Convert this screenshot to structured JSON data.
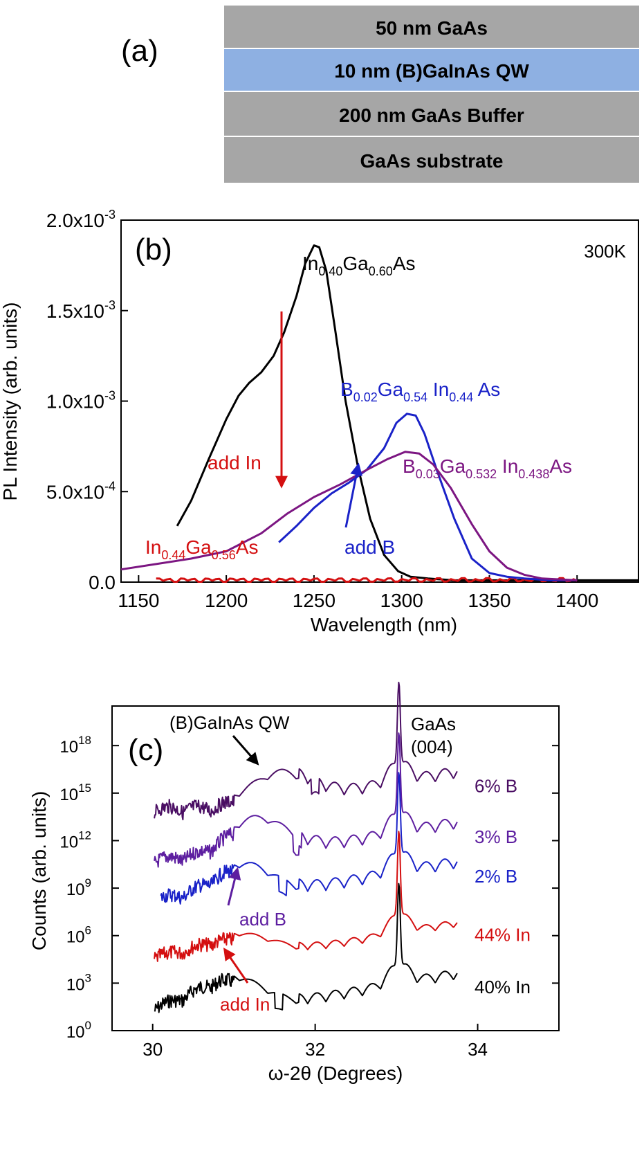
{
  "colors": {
    "gray_layer": "#a6a6a6",
    "blue_layer": "#8eb0e2",
    "black": "#000000",
    "red": "#d40f10",
    "blue": "#1a22c8",
    "purple": "#7c1682",
    "violet": "#5d1ea0",
    "dark_purple": "#4a0e63"
  },
  "panel_a": {
    "label": "(a)",
    "layers": [
      "50 nm GaAs",
      "10 nm (B)GaInAs QW",
      "200 nm GaAs Buffer",
      "GaAs substrate"
    ]
  },
  "chart_data": [
    {
      "type": "line",
      "panel_label": "(b)",
      "temperature_label": "300K",
      "xlabel": "Wavelength (nm)",
      "ylabel": "PL Intensity (arb. units)",
      "xlim": [
        1140,
        1435
      ],
      "ylim": [
        0,
        0.002
      ],
      "xticks": [
        1150,
        1200,
        1250,
        1300,
        1350,
        1400
      ],
      "yticks": [
        0.0,
        0.0005,
        0.001,
        0.0015,
        0.002
      ],
      "ytick_labels": [
        "0.0",
        "5.0x10",
        "1.0x10",
        "1.5x10",
        "2.0x10"
      ],
      "ytick_exponents": [
        "",
        "-4",
        "-3",
        "-3",
        "-3"
      ],
      "series": [
        {
          "name": "In0.40Ga0.60As",
          "color": "#000000",
          "x": [
            1172,
            1180,
            1190,
            1200,
            1207,
            1213,
            1220,
            1227,
            1233,
            1240,
            1245,
            1250,
            1253,
            1257,
            1262,
            1268,
            1275,
            1282,
            1290,
            1298,
            1305,
            1315,
            1330,
            1350,
            1380,
            1410,
            1435
          ],
          "y": [
            0.00031,
            0.00045,
            0.00068,
            0.0009,
            0.00103,
            0.0011,
            0.00116,
            0.00125,
            0.00138,
            0.00158,
            0.00176,
            0.00186,
            0.00185,
            0.00172,
            0.0014,
            0.001,
            0.00064,
            0.00035,
            0.00015,
            6e-05,
            3e-05,
            2e-05,
            1e-05,
            1e-05,
            1e-05,
            1e-05,
            1e-05
          ]
        },
        {
          "name": "In0.44Ga0.56As",
          "color": "#d40f10",
          "x": [
            1160,
            1180,
            1200,
            1220,
            1240,
            1260,
            1280,
            1300,
            1320,
            1340,
            1360,
            1380,
            1400
          ],
          "y": [
            2e-05,
            1e-05,
            1.5e-05,
            1e-05,
            1.5e-05,
            1e-05,
            2e-05,
            1.5e-05,
            1e-05,
            2e-05,
            1e-05,
            1.5e-05,
            1e-05
          ]
        },
        {
          "name": "B0.02Ga0.54In0.44As",
          "color": "#1a22c8",
          "x": [
            1230,
            1240,
            1250,
            1260,
            1270,
            1280,
            1290,
            1297,
            1303,
            1308,
            1313,
            1320,
            1330,
            1340,
            1350,
            1360,
            1370,
            1385,
            1400
          ],
          "y": [
            0.00022,
            0.00031,
            0.00041,
            0.00049,
            0.00055,
            0.00062,
            0.00074,
            0.00088,
            0.00093,
            0.00092,
            0.00082,
            0.00062,
            0.00035,
            0.00013,
            5e-05,
            3e-05,
            2e-05,
            1e-05,
            1e-05
          ]
        },
        {
          "name": "B0.03Ga0.532In0.438As",
          "color": "#7c1682",
          "x": [
            1140,
            1160,
            1180,
            1200,
            1220,
            1235,
            1250,
            1265,
            1280,
            1292,
            1302,
            1310,
            1318,
            1328,
            1340,
            1350,
            1360,
            1370,
            1380,
            1400
          ],
          "y": [
            7e-05,
            0.0001,
            0.00013,
            0.00017,
            0.00027,
            0.00038,
            0.00047,
            0.00054,
            0.00062,
            0.00068,
            0.00072,
            0.00071,
            0.00065,
            0.00052,
            0.00032,
            0.00017,
            8e-05,
            4e-05,
            2e-05,
            1e-05
          ]
        }
      ],
      "annotations": [
        {
          "text": "add In",
          "color": "#d40f10"
        },
        {
          "text": "add B",
          "color": "#1a22c8"
        }
      ]
    },
    {
      "type": "line",
      "panel_label": "(c)",
      "xlabel": "ω-2θ (Degrees)",
      "ylabel": "Counts (arb. units)",
      "yscale": "log",
      "xlim": [
        29.5,
        35.0
      ],
      "ylim_exp": [
        0,
        20.5
      ],
      "xticks": [
        30,
        32,
        34
      ],
      "yticks_exp": [
        0,
        3,
        6,
        9,
        12,
        15,
        18
      ],
      "ytick_base": "10",
      "ytick_exponents": [
        "0",
        "3",
        "6",
        "9",
        "12",
        "15",
        "18"
      ],
      "series": [
        {
          "name": "40% In",
          "color": "#000000",
          "offset_exp": 1.5,
          "fringe": 0.7,
          "qw": [
            30.9,
            1.8,
            0.6
          ],
          "gap": 31.55
        },
        {
          "name": "44% In",
          "color": "#d40f10",
          "offset_exp": 4.8,
          "fringe": 0.5,
          "qw": [
            31.0,
            1.2,
            0.7
          ],
          "gap": 0
        },
        {
          "name": "2% B",
          "color": "#1a22c8",
          "offset_exp": 8.5,
          "fringe": 0.8,
          "qw": [
            31.1,
            1.8,
            0.55
          ],
          "gap": 31.6
        },
        {
          "name": "3% B",
          "color": "#5d1ea0",
          "offset_exp": 11.0,
          "fringe": 0.8,
          "qw": [
            31.3,
            2.2,
            0.55
          ],
          "gap": 31.78
        },
        {
          "name": "6% B",
          "color": "#4a0e63",
          "offset_exp": 14.2,
          "fringe": 0.8,
          "qw": [
            31.6,
            1.9,
            0.5
          ],
          "gap": 32.0
        }
      ],
      "annotations": [
        {
          "text": "(B)GaInAs QW",
          "color": "#000000"
        },
        {
          "text": "GaAs",
          "color": "#000000"
        },
        {
          "text": "(004)",
          "color": "#000000"
        },
        {
          "text": "add B",
          "color": "#5d1ea0"
        },
        {
          "text": "add In",
          "color": "#d40f10"
        }
      ]
    }
  ]
}
